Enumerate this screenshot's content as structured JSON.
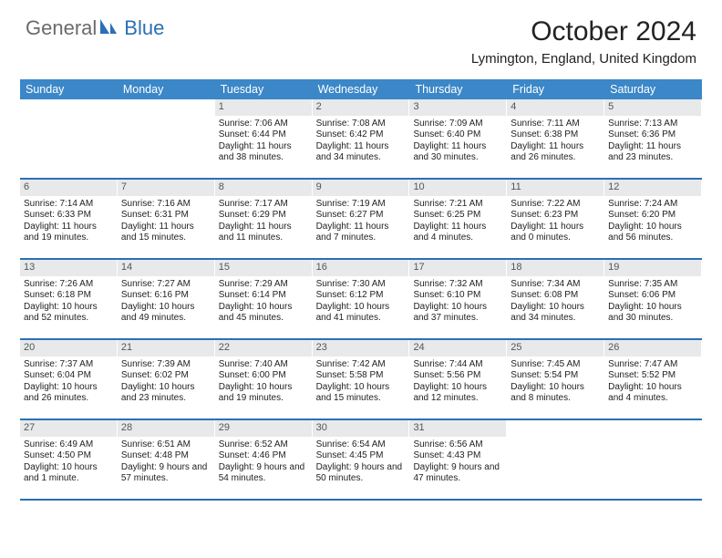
{
  "logo": {
    "part1": "General",
    "part2": "Blue"
  },
  "title": "October 2024",
  "location": "Lymington, England, United Kingdom",
  "colors": {
    "header_bg": "#3b87c8",
    "row_divider": "#2c6fb5",
    "daynum_bg": "#e7e9eb",
    "logo_gray": "#6b6b6b",
    "logo_blue": "#2c6fb5"
  },
  "day_headers": [
    "Sunday",
    "Monday",
    "Tuesday",
    "Wednesday",
    "Thursday",
    "Friday",
    "Saturday"
  ],
  "weeks": [
    [
      null,
      null,
      {
        "n": "1",
        "sunrise": "Sunrise: 7:06 AM",
        "sunset": "Sunset: 6:44 PM",
        "daylight": "Daylight: 11 hours and 38 minutes."
      },
      {
        "n": "2",
        "sunrise": "Sunrise: 7:08 AM",
        "sunset": "Sunset: 6:42 PM",
        "daylight": "Daylight: 11 hours and 34 minutes."
      },
      {
        "n": "3",
        "sunrise": "Sunrise: 7:09 AM",
        "sunset": "Sunset: 6:40 PM",
        "daylight": "Daylight: 11 hours and 30 minutes."
      },
      {
        "n": "4",
        "sunrise": "Sunrise: 7:11 AM",
        "sunset": "Sunset: 6:38 PM",
        "daylight": "Daylight: 11 hours and 26 minutes."
      },
      {
        "n": "5",
        "sunrise": "Sunrise: 7:13 AM",
        "sunset": "Sunset: 6:36 PM",
        "daylight": "Daylight: 11 hours and 23 minutes."
      }
    ],
    [
      {
        "n": "6",
        "sunrise": "Sunrise: 7:14 AM",
        "sunset": "Sunset: 6:33 PM",
        "daylight": "Daylight: 11 hours and 19 minutes."
      },
      {
        "n": "7",
        "sunrise": "Sunrise: 7:16 AM",
        "sunset": "Sunset: 6:31 PM",
        "daylight": "Daylight: 11 hours and 15 minutes."
      },
      {
        "n": "8",
        "sunrise": "Sunrise: 7:17 AM",
        "sunset": "Sunset: 6:29 PM",
        "daylight": "Daylight: 11 hours and 11 minutes."
      },
      {
        "n": "9",
        "sunrise": "Sunrise: 7:19 AM",
        "sunset": "Sunset: 6:27 PM",
        "daylight": "Daylight: 11 hours and 7 minutes."
      },
      {
        "n": "10",
        "sunrise": "Sunrise: 7:21 AM",
        "sunset": "Sunset: 6:25 PM",
        "daylight": "Daylight: 11 hours and 4 minutes."
      },
      {
        "n": "11",
        "sunrise": "Sunrise: 7:22 AM",
        "sunset": "Sunset: 6:23 PM",
        "daylight": "Daylight: 11 hours and 0 minutes."
      },
      {
        "n": "12",
        "sunrise": "Sunrise: 7:24 AM",
        "sunset": "Sunset: 6:20 PM",
        "daylight": "Daylight: 10 hours and 56 minutes."
      }
    ],
    [
      {
        "n": "13",
        "sunrise": "Sunrise: 7:26 AM",
        "sunset": "Sunset: 6:18 PM",
        "daylight": "Daylight: 10 hours and 52 minutes."
      },
      {
        "n": "14",
        "sunrise": "Sunrise: 7:27 AM",
        "sunset": "Sunset: 6:16 PM",
        "daylight": "Daylight: 10 hours and 49 minutes."
      },
      {
        "n": "15",
        "sunrise": "Sunrise: 7:29 AM",
        "sunset": "Sunset: 6:14 PM",
        "daylight": "Daylight: 10 hours and 45 minutes."
      },
      {
        "n": "16",
        "sunrise": "Sunrise: 7:30 AM",
        "sunset": "Sunset: 6:12 PM",
        "daylight": "Daylight: 10 hours and 41 minutes."
      },
      {
        "n": "17",
        "sunrise": "Sunrise: 7:32 AM",
        "sunset": "Sunset: 6:10 PM",
        "daylight": "Daylight: 10 hours and 37 minutes."
      },
      {
        "n": "18",
        "sunrise": "Sunrise: 7:34 AM",
        "sunset": "Sunset: 6:08 PM",
        "daylight": "Daylight: 10 hours and 34 minutes."
      },
      {
        "n": "19",
        "sunrise": "Sunrise: 7:35 AM",
        "sunset": "Sunset: 6:06 PM",
        "daylight": "Daylight: 10 hours and 30 minutes."
      }
    ],
    [
      {
        "n": "20",
        "sunrise": "Sunrise: 7:37 AM",
        "sunset": "Sunset: 6:04 PM",
        "daylight": "Daylight: 10 hours and 26 minutes."
      },
      {
        "n": "21",
        "sunrise": "Sunrise: 7:39 AM",
        "sunset": "Sunset: 6:02 PM",
        "daylight": "Daylight: 10 hours and 23 minutes."
      },
      {
        "n": "22",
        "sunrise": "Sunrise: 7:40 AM",
        "sunset": "Sunset: 6:00 PM",
        "daylight": "Daylight: 10 hours and 19 minutes."
      },
      {
        "n": "23",
        "sunrise": "Sunrise: 7:42 AM",
        "sunset": "Sunset: 5:58 PM",
        "daylight": "Daylight: 10 hours and 15 minutes."
      },
      {
        "n": "24",
        "sunrise": "Sunrise: 7:44 AM",
        "sunset": "Sunset: 5:56 PM",
        "daylight": "Daylight: 10 hours and 12 minutes."
      },
      {
        "n": "25",
        "sunrise": "Sunrise: 7:45 AM",
        "sunset": "Sunset: 5:54 PM",
        "daylight": "Daylight: 10 hours and 8 minutes."
      },
      {
        "n": "26",
        "sunrise": "Sunrise: 7:47 AM",
        "sunset": "Sunset: 5:52 PM",
        "daylight": "Daylight: 10 hours and 4 minutes."
      }
    ],
    [
      {
        "n": "27",
        "sunrise": "Sunrise: 6:49 AM",
        "sunset": "Sunset: 4:50 PM",
        "daylight": "Daylight: 10 hours and 1 minute."
      },
      {
        "n": "28",
        "sunrise": "Sunrise: 6:51 AM",
        "sunset": "Sunset: 4:48 PM",
        "daylight": "Daylight: 9 hours and 57 minutes."
      },
      {
        "n": "29",
        "sunrise": "Sunrise: 6:52 AM",
        "sunset": "Sunset: 4:46 PM",
        "daylight": "Daylight: 9 hours and 54 minutes."
      },
      {
        "n": "30",
        "sunrise": "Sunrise: 6:54 AM",
        "sunset": "Sunset: 4:45 PM",
        "daylight": "Daylight: 9 hours and 50 minutes."
      },
      {
        "n": "31",
        "sunrise": "Sunrise: 6:56 AM",
        "sunset": "Sunset: 4:43 PM",
        "daylight": "Daylight: 9 hours and 47 minutes."
      },
      null,
      null
    ]
  ]
}
